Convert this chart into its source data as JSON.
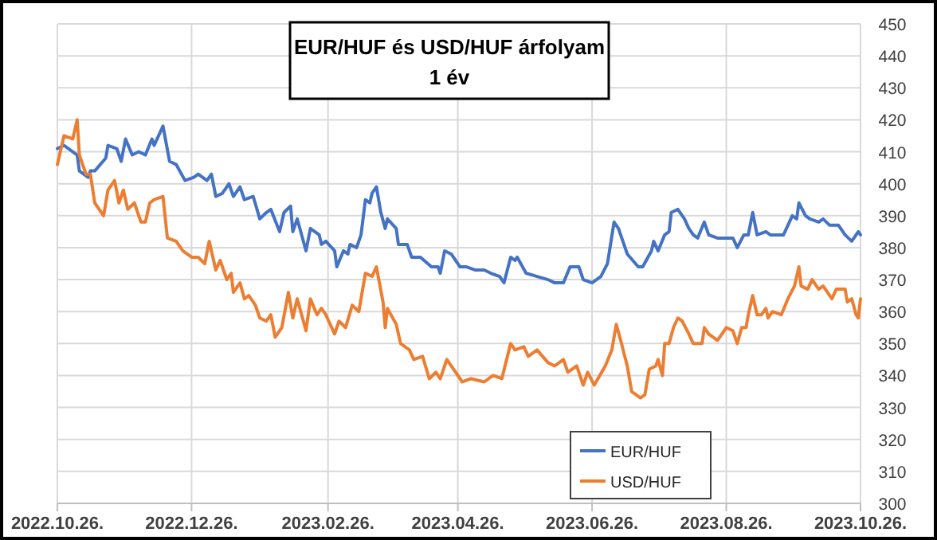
{
  "chart_data": {
    "type": "line",
    "title": "EUR/HUF és USD/HUF árfolyam",
    "subtitle": "1 év",
    "xlim": [
      "2022-10-26",
      "2023-10-26"
    ],
    "xticks": [
      {
        "value": "2022-10-26",
        "label": "2022.10.26."
      },
      {
        "value": "2022-12-26",
        "label": "2022.12.26."
      },
      {
        "value": "2023-02-26",
        "label": "2023.02.26."
      },
      {
        "value": "2023-04-26",
        "label": "2023.04.26."
      },
      {
        "value": "2023-06-26",
        "label": "2023.06.26."
      },
      {
        "value": "2023-08-26",
        "label": "2023.08.26."
      },
      {
        "value": "2023-10-26",
        "label": "2023.10.26."
      }
    ],
    "ylim": [
      300,
      450
    ],
    "yticks": [
      300,
      310,
      320,
      330,
      340,
      350,
      360,
      370,
      380,
      390,
      400,
      410,
      420,
      430,
      440,
      450
    ],
    "grid": true,
    "legend": "bottom right",
    "marker": "none",
    "line_style": "solid",
    "series": [
      {
        "name": "EUR/HUF",
        "color": "#4472c4",
        "x": [
          "2022-10-26",
          "2022-10-29",
          "2022-11-04",
          "2022-11-05",
          "2022-11-09",
          "2022-11-10",
          "2022-11-12",
          "2022-11-17",
          "2022-11-18",
          "2022-11-22",
          "2022-11-24",
          "2022-11-26",
          "2022-11-29",
          "2022-12-02",
          "2022-12-05",
          "2022-12-08",
          "2022-12-09",
          "2022-12-13",
          "2022-12-16",
          "2022-12-19",
          "2022-12-23",
          "2022-12-27",
          "2022-12-29",
          "2023-01-02",
          "2023-01-04",
          "2023-01-06",
          "2023-01-09",
          "2023-01-12",
          "2023-01-14",
          "2023-01-17",
          "2023-01-19",
          "2023-01-23",
          "2023-01-26",
          "2023-01-29",
          "2023-01-31",
          "2023-02-04",
          "2023-02-06",
          "2023-02-09",
          "2023-02-10",
          "2023-02-12",
          "2023-02-16",
          "2023-02-18",
          "2023-02-22",
          "2023-02-23",
          "2023-02-25",
          "2023-03-01",
          "2023-03-02",
          "2023-03-05",
          "2023-03-07",
          "2023-03-08",
          "2023-03-11",
          "2023-03-13",
          "2023-03-15",
          "2023-03-17",
          "2023-03-18",
          "2023-03-20",
          "2023-03-22",
          "2023-03-24",
          "2023-03-25",
          "2023-03-29",
          "2023-03-30",
          "2023-04-03",
          "2023-04-05",
          "2023-04-09",
          "2023-04-14",
          "2023-04-17",
          "2023-04-18",
          "2023-04-20",
          "2023-04-23",
          "2023-04-27",
          "2023-04-30",
          "2023-05-04",
          "2023-05-08",
          "2023-05-11",
          "2023-05-15",
          "2023-05-17",
          "2023-05-20",
          "2023-05-22",
          "2023-05-23",
          "2023-05-27",
          "2023-06-01",
          "2023-06-06",
          "2023-06-09",
          "2023-06-13",
          "2023-06-16",
          "2023-06-20",
          "2023-06-22",
          "2023-06-26",
          "2023-06-30",
          "2023-07-03",
          "2023-07-06",
          "2023-07-08",
          "2023-07-12",
          "2023-07-17",
          "2023-07-19",
          "2023-07-23",
          "2023-07-24",
          "2023-07-26",
          "2023-07-29",
          "2023-07-31",
          "2023-08-01",
          "2023-08-04",
          "2023-08-07",
          "2023-08-09",
          "2023-08-11",
          "2023-08-13",
          "2023-08-16",
          "2023-08-18",
          "2023-08-22",
          "2023-08-29",
          "2023-08-31",
          "2023-09-03",
          "2023-09-05",
          "2023-09-07",
          "2023-09-09",
          "2023-09-13",
          "2023-09-15",
          "2023-09-21",
          "2023-09-25",
          "2023-09-27",
          "2023-09-28",
          "2023-10-01",
          "2023-10-03",
          "2023-10-07",
          "2023-10-09",
          "2023-10-12",
          "2023-10-16",
          "2023-10-19",
          "2023-10-22",
          "2023-10-24",
          "2023-10-25",
          "2023-10-26"
        ],
        "values": [
          411,
          412,
          409,
          404,
          402,
          404,
          404,
          408,
          412,
          411,
          407,
          414,
          409,
          410,
          409,
          414,
          412,
          418,
          407,
          406,
          401,
          402,
          403,
          401,
          403,
          396,
          397,
          400,
          396,
          399,
          395,
          396,
          389,
          391,
          392,
          385,
          391,
          393,
          385,
          389,
          379,
          386,
          384,
          381,
          382,
          379,
          374,
          379,
          378,
          381,
          380,
          384,
          395,
          394,
          397,
          399,
          391,
          386,
          389,
          386,
          381,
          381,
          377,
          377,
          374,
          374,
          372,
          379,
          378,
          374,
          374,
          373,
          373,
          372,
          371,
          369,
          377,
          376,
          377,
          372,
          371,
          370,
          369,
          369,
          374,
          374,
          370,
          369,
          371,
          375,
          388,
          386,
          378,
          374,
          374,
          379,
          382,
          379,
          384,
          385,
          391,
          392,
          389,
          386,
          384,
          383,
          388,
          384,
          383,
          383,
          380,
          384,
          384,
          391,
          384,
          385,
          384,
          384,
          390,
          389,
          394,
          390,
          389,
          388,
          389,
          387,
          387,
          384,
          382,
          384,
          385,
          384
        ]
      },
      {
        "name": "USD/HUF",
        "color": "#ed7d31",
        "x": [
          "2022-10-26",
          "2022-10-29",
          "2022-11-02",
          "2022-11-04",
          "2022-11-05",
          "2022-11-08",
          "2022-11-10",
          "2022-11-12",
          "2022-11-16",
          "2022-11-18",
          "2022-11-21",
          "2022-11-23",
          "2022-11-25",
          "2022-11-27",
          "2022-11-30",
          "2022-12-03",
          "2022-12-05",
          "2022-12-07",
          "2022-12-09",
          "2022-12-13",
          "2022-12-15",
          "2022-12-19",
          "2022-12-22",
          "2022-12-26",
          "2022-12-29",
          "2023-01-01",
          "2023-01-03",
          "2023-01-06",
          "2023-01-08",
          "2023-01-11",
          "2023-01-13",
          "2023-01-14",
          "2023-01-17",
          "2023-01-19",
          "2023-01-21",
          "2023-01-24",
          "2023-01-26",
          "2023-01-29",
          "2023-01-31",
          "2023-02-02",
          "2023-02-05",
          "2023-02-08",
          "2023-02-10",
          "2023-02-12",
          "2023-02-16",
          "2023-02-18",
          "2023-02-21",
          "2023-02-23",
          "2023-02-25",
          "2023-03-01",
          "2023-03-03",
          "2023-03-06",
          "2023-03-09",
          "2023-03-12",
          "2023-03-15",
          "2023-03-18",
          "2023-03-20",
          "2023-03-23",
          "2023-03-24",
          "2023-03-25",
          "2023-03-29",
          "2023-03-31",
          "2023-04-04",
          "2023-04-06",
          "2023-04-10",
          "2023-04-13",
          "2023-04-16",
          "2023-04-18",
          "2023-04-21",
          "2023-04-24",
          "2023-04-28",
          "2023-05-02",
          "2023-05-08",
          "2023-05-12",
          "2023-05-16",
          "2023-05-20",
          "2023-05-22",
          "2023-05-26",
          "2023-05-28",
          "2023-06-01",
          "2023-06-06",
          "2023-06-09",
          "2023-06-13",
          "2023-06-15",
          "2023-06-19",
          "2023-06-22",
          "2023-06-24",
          "2023-06-27",
          "2023-07-02",
          "2023-07-05",
          "2023-07-07",
          "2023-07-09",
          "2023-07-12",
          "2023-07-14",
          "2023-07-18",
          "2023-07-20",
          "2023-07-22",
          "2023-07-25",
          "2023-07-26",
          "2023-07-28",
          "2023-07-29",
          "2023-07-31",
          "2023-08-02",
          "2023-08-04",
          "2023-08-06",
          "2023-08-09",
          "2023-08-11",
          "2023-08-15",
          "2023-08-16",
          "2023-08-18",
          "2023-08-22",
          "2023-08-26",
          "2023-08-29",
          "2023-08-31",
          "2023-09-02",
          "2023-09-04",
          "2023-09-05",
          "2023-09-07",
          "2023-09-09",
          "2023-09-11",
          "2023-09-13",
          "2023-09-14",
          "2023-09-16",
          "2023-09-20",
          "2023-09-23",
          "2023-09-26",
          "2023-09-28",
          "2023-09-29",
          "2023-10-02",
          "2023-10-04",
          "2023-10-07",
          "2023-10-09",
          "2023-10-12",
          "2023-10-13",
          "2023-10-15",
          "2023-10-19",
          "2023-10-20",
          "2023-10-22",
          "2023-10-24",
          "2023-10-25",
          "2023-10-26"
        ],
        "values": [
          406,
          415,
          414,
          420,
          409,
          403,
          403,
          394,
          390,
          398,
          401,
          394,
          398,
          392,
          394,
          388,
          388,
          394,
          395,
          396,
          383,
          382,
          379,
          377,
          377,
          375,
          382,
          373,
          376,
          370,
          372,
          366,
          369,
          364,
          365,
          362,
          358,
          357,
          359,
          352,
          355,
          366,
          358,
          364,
          354,
          364,
          359,
          361,
          359,
          353,
          357,
          355,
          362,
          360,
          372,
          371,
          374,
          363,
          355,
          361,
          356,
          350,
          348,
          345,
          346,
          339,
          341,
          339,
          345,
          342,
          338,
          339,
          338,
          340,
          339,
          350,
          348,
          349,
          346,
          348,
          344,
          343,
          345,
          341,
          343,
          337,
          341,
          337,
          343,
          348,
          356,
          351,
          343,
          335,
          333,
          334,
          342,
          343,
          345,
          340,
          350,
          350,
          355,
          358,
          357,
          353,
          350,
          350,
          355,
          353,
          351,
          355,
          354,
          350,
          355,
          355,
          359,
          365,
          359,
          359,
          361,
          358,
          360,
          359,
          364,
          368,
          374,
          368,
          367,
          370,
          367,
          368,
          365,
          364,
          367,
          367,
          363,
          364,
          359,
          358,
          364
        ]
      }
    ]
  }
}
